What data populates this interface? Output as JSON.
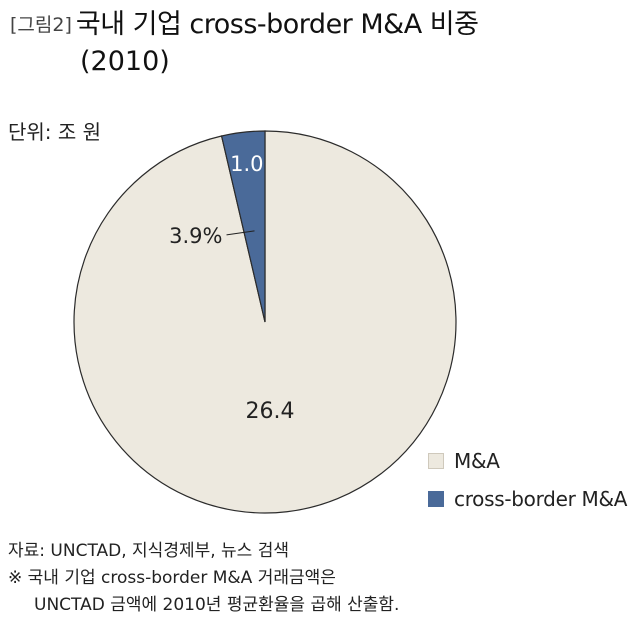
{
  "title": {
    "figure_label": "[그림2]",
    "line1": "국내 기업 cross-border M&A 비중",
    "line2": "(2010)"
  },
  "unit_label": "단위: 조 원",
  "chart_data": {
    "type": "pie",
    "title": "국내 기업 cross-border M&A 비중 (2010)",
    "unit": "조 원",
    "slices": [
      {
        "name": "M&A",
        "value": 26.4,
        "value_label": "26.4",
        "color": "#ede9df"
      },
      {
        "name": "cross-border M&A",
        "value": 1.0,
        "value_label": "1.0",
        "percent_label": "3.9%",
        "color": "#4a6a99"
      }
    ],
    "legend_position": "bottom-right"
  },
  "legend": [
    {
      "label": "M&A",
      "color": "#ede9df"
    },
    {
      "label": "cross-border M&A",
      "color": "#4a6a99"
    }
  ],
  "footer": {
    "source": "자료: UNCTAD, 지식경제부, 뉴스 검색",
    "note_line1": "※ 국내 기업 cross-border M&A 거래금액은",
    "note_line2": "UNCTAD 금액에 2010년 평균환율을 곱해 산출함."
  }
}
